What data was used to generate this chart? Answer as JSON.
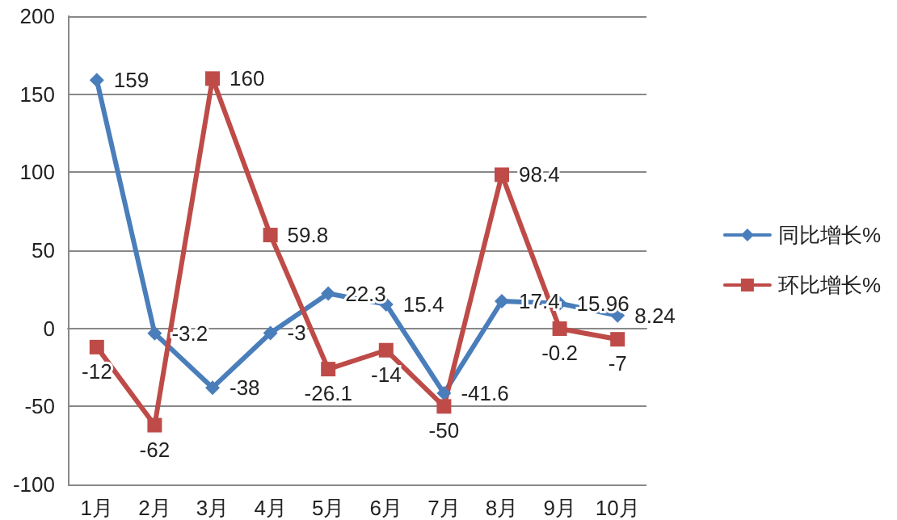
{
  "chart_data": {
    "type": "line",
    "categories": [
      "1月",
      "2月",
      "3月",
      "4月",
      "5月",
      "6月",
      "7月",
      "8月",
      "9月",
      "10月"
    ],
    "series": [
      {
        "name": "同比增长%",
        "color": "#4a7ebb",
        "marker": "diamond",
        "values": [
          159,
          -3.2,
          -38,
          -3,
          22.3,
          15.4,
          -41.6,
          17.4,
          15.96,
          8.24
        ]
      },
      {
        "name": "环比增长%",
        "color": "#be4b48",
        "marker": "square",
        "values": [
          -12,
          -62,
          160,
          59.8,
          -26.1,
          -14,
          -50,
          98.4,
          -0.2,
          -7
        ]
      }
    ],
    "ylim": [
      -100,
      200
    ],
    "yticks": [
      -100,
      -50,
      0,
      50,
      100,
      150,
      200
    ],
    "grid": "y",
    "legend": "right",
    "data_labels": true
  }
}
